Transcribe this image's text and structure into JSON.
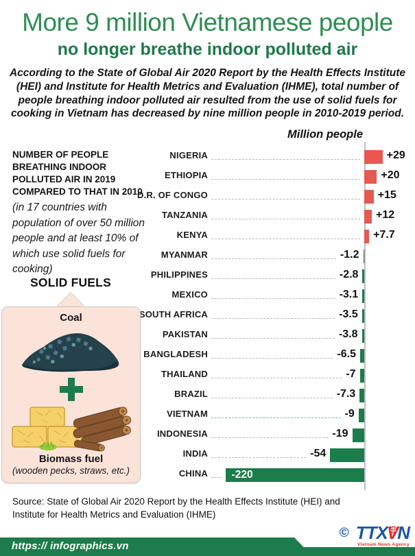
{
  "header": {
    "title": "More 9 million Vietnamese people",
    "subtitle": "no longer breathe indoor polluted air",
    "intro": "According to the State of Global Air 2020 Report by the Health Effects Institute (HEI) and Institute for Health Metrics and Evaluation (IHME), total number of people breathing indoor polluted air resulted from the use of solid fuels for cooking in Vietnam has decreased by nine million people in 2010-2019 period."
  },
  "note": {
    "bold": "NUMBER OF PEOPLE BREATHING INDOOR POLLUTED AIR IN 2019 COMPARED TO THAT IN 2010",
    "italic": "(in 17 countries with population of over 50 million people and at least 10% of which use solid fuels for cooking)"
  },
  "solid_fuels": {
    "title": "SOLID FUELS",
    "coal_label": "Coal",
    "biomass_label": "Biomass fuel",
    "biomass_sub": "(wooden pecks, straws, etc.)"
  },
  "chart_data": {
    "type": "bar",
    "orientation": "horizontal",
    "axis_label": "Million people",
    "unit": "million people",
    "categories": [
      "NIGERIA",
      "ETHIOPIA",
      "D.R. OF CONGO",
      "TANZANIA",
      "KENYA",
      "MYANMAR",
      "PHILIPPINES",
      "MEXICO",
      "SOUTH AFRICA",
      "PAKISTAN",
      "BANGLADESH",
      "THAILAND",
      "BRAZIL",
      "VIETNAM",
      "INDONESIA",
      "INDIA",
      "CHINA"
    ],
    "values": [
      29,
      20,
      15,
      12,
      7.7,
      -1.2,
      -2.8,
      -3.1,
      -3.5,
      -3.8,
      -6.5,
      -7,
      -7.3,
      -9,
      -19,
      -54,
      -220
    ],
    "labels": [
      "+29",
      "+20",
      "+15",
      "+12",
      "+7.7",
      "-1.2",
      "-2.8",
      "-3.1",
      "-3.5",
      "-3.8",
      "-6.5",
      "-7",
      "-7.3",
      "-9",
      "-19",
      "-54",
      "-220"
    ],
    "highlight": "VIETNAM",
    "positive_color": "#e8584e",
    "negative_color": "#1d7c4b",
    "grid": false,
    "legend": false
  },
  "source": "Source: State of Global Air 2020 Report by the Health Effects Institute (HEI) and Institute for Health Metrics and Evaluation (IHME)",
  "footer": {
    "url": "https:// infographics.vn",
    "copyright": "©",
    "logo_ttx": "TTX",
    "logo_v": "V",
    "logo_n": "N",
    "logo_caption": "Vietnam News Agency"
  }
}
